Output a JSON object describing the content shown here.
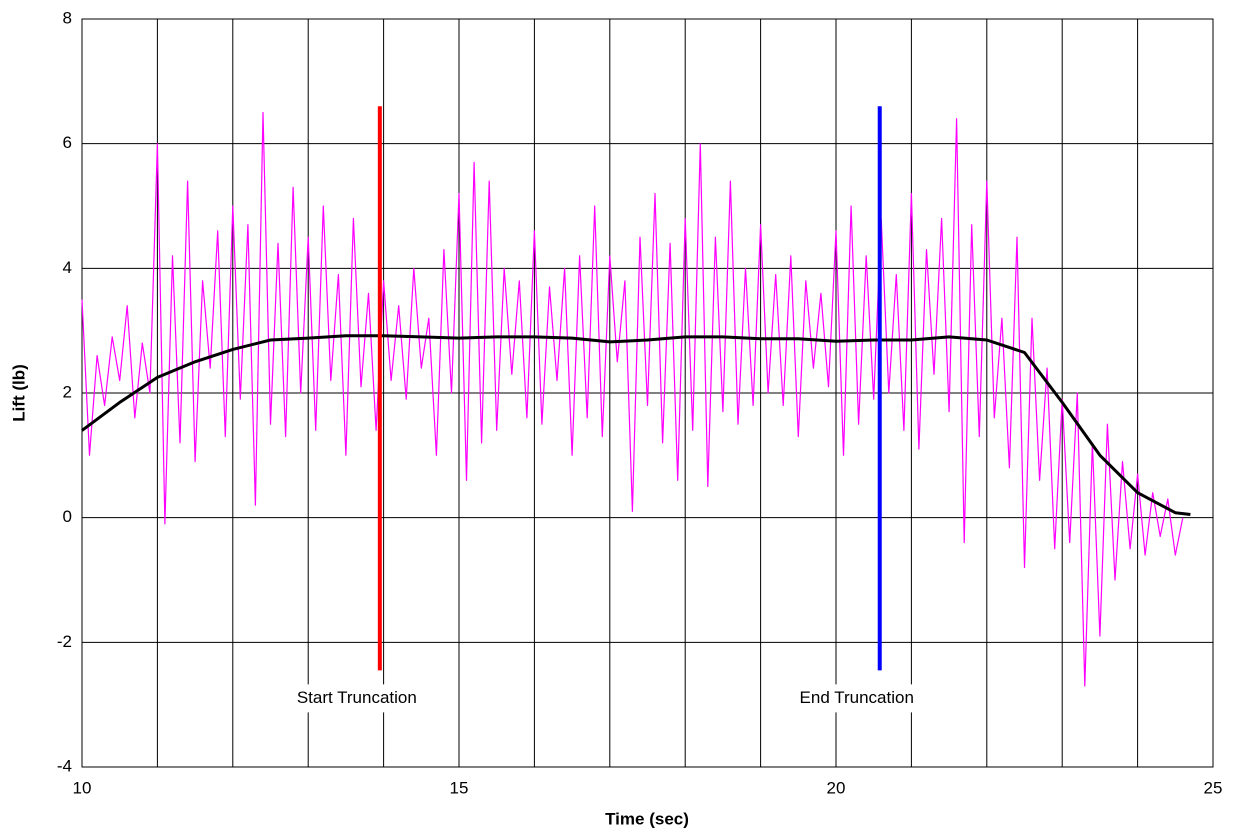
{
  "chart_data": {
    "type": "line",
    "xlabel": "Time (sec)",
    "ylabel": "Lift (lb)",
    "xlim": [
      10,
      25
    ],
    "xticks": [
      10,
      15,
      20,
      25
    ],
    "xminor": [
      11,
      12,
      13,
      14,
      16,
      17,
      18,
      19,
      21,
      22,
      23,
      24
    ],
    "ylim": [
      -4,
      8
    ],
    "yticks": [
      -4,
      -2,
      0,
      2,
      4,
      6,
      8
    ],
    "grid": true,
    "series": [
      {
        "color": "#ff00ff",
        "x": [
          10.0,
          10.1,
          10.2,
          10.3,
          10.4,
          10.5,
          10.6,
          10.7,
          10.8,
          10.9,
          11.0,
          11.1,
          11.2,
          11.3,
          11.4,
          11.5,
          11.6,
          11.7,
          11.8,
          11.9,
          12.0,
          12.1,
          12.2,
          12.3,
          12.4,
          12.5,
          12.6,
          12.7,
          12.8,
          12.9,
          13.0,
          13.1,
          13.2,
          13.3,
          13.4,
          13.5,
          13.6,
          13.7,
          13.8,
          13.9,
          14.0,
          14.1,
          14.2,
          14.3,
          14.4,
          14.5,
          14.6,
          14.7,
          14.8,
          14.9,
          15.0,
          15.1,
          15.2,
          15.3,
          15.4,
          15.5,
          15.6,
          15.7,
          15.8,
          15.9,
          16.0,
          16.1,
          16.2,
          16.3,
          16.4,
          16.5,
          16.6,
          16.7,
          16.8,
          16.9,
          17.0,
          17.1,
          17.2,
          17.3,
          17.4,
          17.5,
          17.6,
          17.7,
          17.8,
          17.9,
          18.0,
          18.1,
          18.2,
          18.3,
          18.4,
          18.5,
          18.6,
          18.7,
          18.8,
          18.9,
          19.0,
          19.1,
          19.2,
          19.3,
          19.4,
          19.5,
          19.6,
          19.7,
          19.8,
          19.9,
          20.0,
          20.1,
          20.2,
          20.3,
          20.4,
          20.5,
          20.6,
          20.7,
          20.8,
          20.9,
          21.0,
          21.1,
          21.2,
          21.3,
          21.4,
          21.5,
          21.6,
          21.7,
          21.8,
          21.9,
          22.0,
          22.1,
          22.2,
          22.3,
          22.4,
          22.5,
          22.6,
          22.7,
          22.8,
          22.9,
          23.0,
          23.1,
          23.2,
          23.3,
          23.4,
          23.5,
          23.6,
          23.7,
          23.8,
          23.9,
          24.0,
          24.1,
          24.2,
          24.3,
          24.4,
          24.5,
          24.6
        ],
        "values": [
          3.5,
          1.0,
          2.6,
          1.8,
          2.9,
          2.2,
          3.4,
          1.6,
          2.8,
          2.0,
          6.0,
          -0.1,
          4.2,
          1.2,
          5.4,
          0.9,
          3.8,
          2.4,
          4.6,
          1.3,
          5.0,
          1.9,
          4.7,
          0.2,
          6.5,
          1.5,
          4.4,
          1.3,
          5.3,
          2.0,
          4.5,
          1.4,
          5.0,
          2.2,
          3.9,
          1.0,
          4.8,
          2.1,
          3.6,
          1.4,
          3.8,
          2.2,
          3.4,
          1.9,
          4.0,
          2.4,
          3.2,
          1.0,
          4.3,
          2.0,
          5.2,
          0.6,
          5.7,
          1.2,
          5.4,
          1.4,
          4.0,
          2.3,
          3.8,
          1.6,
          4.6,
          1.5,
          3.7,
          2.2,
          4.0,
          1.0,
          4.2,
          1.6,
          5.0,
          1.3,
          4.2,
          2.5,
          3.8,
          0.1,
          4.5,
          1.8,
          5.2,
          1.2,
          4.4,
          0.6,
          4.8,
          1.4,
          6.0,
          0.5,
          4.5,
          1.7,
          5.4,
          1.5,
          4.0,
          1.8,
          4.7,
          2.0,
          3.9,
          1.8,
          4.2,
          1.3,
          3.8,
          2.4,
          3.6,
          2.1,
          4.6,
          1.0,
          5.0,
          1.5,
          4.2,
          1.9,
          4.8,
          2.0,
          3.9,
          1.4,
          5.2,
          1.1,
          4.3,
          2.3,
          4.8,
          1.7,
          6.4,
          -0.4,
          4.7,
          1.3,
          5.4,
          1.6,
          3.2,
          0.8,
          4.5,
          -0.8,
          3.2,
          0.6,
          2.4,
          -0.5,
          1.9,
          -0.4,
          2.0,
          -2.7,
          1.2,
          -1.9,
          1.5,
          -1.0,
          0.9,
          -0.5,
          0.7,
          -0.6,
          0.4,
          -0.3,
          0.3,
          -0.6,
          0.0
        ]
      },
      {
        "color": "#000000",
        "x": [
          10,
          10.5,
          11,
          11.5,
          12,
          12.5,
          13,
          13.5,
          14,
          14.5,
          15,
          15.5,
          16,
          16.5,
          17,
          17.5,
          18,
          18.5,
          19,
          19.5,
          20,
          20.5,
          21,
          21.5,
          22,
          22.5,
          23,
          23.5,
          24,
          24.5,
          24.7
        ],
        "values": [
          1.4,
          1.85,
          2.25,
          2.5,
          2.7,
          2.85,
          2.88,
          2.92,
          2.92,
          2.9,
          2.88,
          2.9,
          2.9,
          2.88,
          2.82,
          2.85,
          2.9,
          2.9,
          2.87,
          2.87,
          2.83,
          2.85,
          2.85,
          2.9,
          2.85,
          2.65,
          1.85,
          1.0,
          0.4,
          0.08,
          0.05
        ]
      }
    ],
    "markers": [
      {
        "x": 13.95,
        "ymin": -2.45,
        "ymax": 6.6,
        "color": "#ff0000",
        "label": "Start Truncation"
      },
      {
        "x": 20.58,
        "ymin": -2.45,
        "ymax": 6.6,
        "color": "#0000ff",
        "label": "End Truncation"
      }
    ]
  }
}
